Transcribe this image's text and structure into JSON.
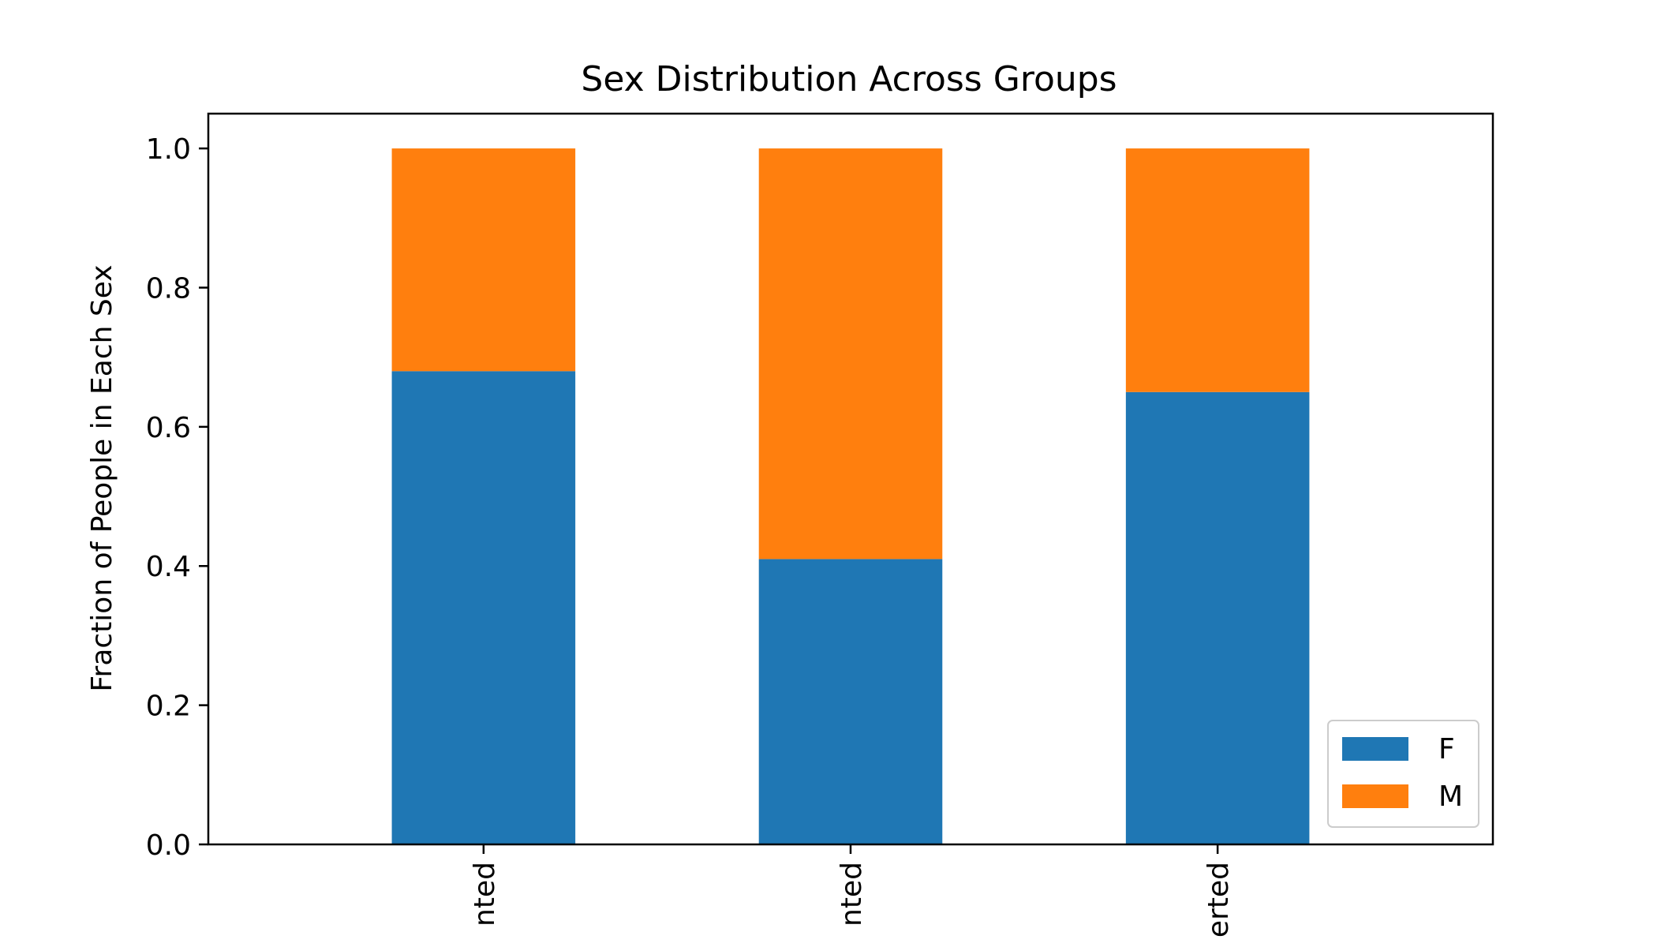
{
  "chart_data": {
    "type": "bar",
    "stacked": true,
    "title": "Sex Distribution Across Groups",
    "xlabel": "",
    "ylabel": "Fraction of People in Each Sex",
    "ylim": [
      0,
      1.05
    ],
    "yticks": [
      "0.0",
      "0.2",
      "0.4",
      "0.6",
      "0.8",
      "1.0"
    ],
    "categories": [
      "nted",
      "nted",
      "erted"
    ],
    "series": [
      {
        "name": "F",
        "color": "#1f77b4",
        "values": [
          0.68,
          0.41,
          0.65
        ]
      },
      {
        "name": "M",
        "color": "#ff7f0e",
        "values": [
          0.32,
          0.59,
          0.35
        ]
      }
    ],
    "legend": {
      "placement": "lower-right",
      "entries": [
        "F",
        "M"
      ]
    },
    "grid": false
  }
}
